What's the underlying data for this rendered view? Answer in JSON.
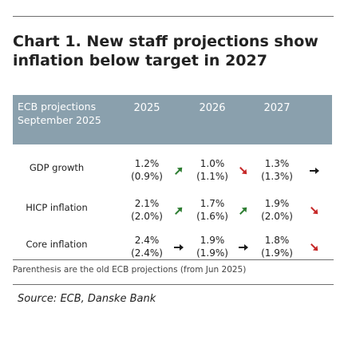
{
  "title": "Chart 1. New staff projections show inflation below target in 2027",
  "header_label_line1": "ECB projections",
  "header_label_line2": "September 2025",
  "colors": {
    "header_bg": "#8aa0ad",
    "up": "#2e7d32",
    "down": "#c62828",
    "flat": "#1a1a1a"
  },
  "chart_data": {
    "type": "table",
    "title": "Chart 1. New staff projections show inflation below target in 2027",
    "columns": [
      "2025",
      "2026",
      "2027"
    ],
    "rows": [
      {
        "label": "GDP growth",
        "values": [
          "1.2%",
          "1.0%",
          "1.3%"
        ],
        "previous": [
          "(0.9%)",
          "(1.1%)",
          "(1.3%)"
        ],
        "changes": [
          "up",
          "down",
          "flat"
        ]
      },
      {
        "label": "HICP inflation",
        "values": [
          "2.1%",
          "1.7%",
          "1.9%"
        ],
        "previous": [
          "(2.0%)",
          "(1.6%)",
          "(2.0%)"
        ],
        "changes": [
          "up",
          "up",
          "down"
        ]
      },
      {
        "label": "Core inflation",
        "values": [
          "2.4%",
          "1.9%",
          "1.8%"
        ],
        "previous": [
          "(2.4%)",
          "(1.9%)",
          "(1.9%)"
        ],
        "changes": [
          "flat",
          "flat",
          "down"
        ]
      }
    ],
    "note": "Parenthesis are the old ECB projections (from Jun 2025)",
    "source": "Source: ECB, Danske Bank"
  }
}
